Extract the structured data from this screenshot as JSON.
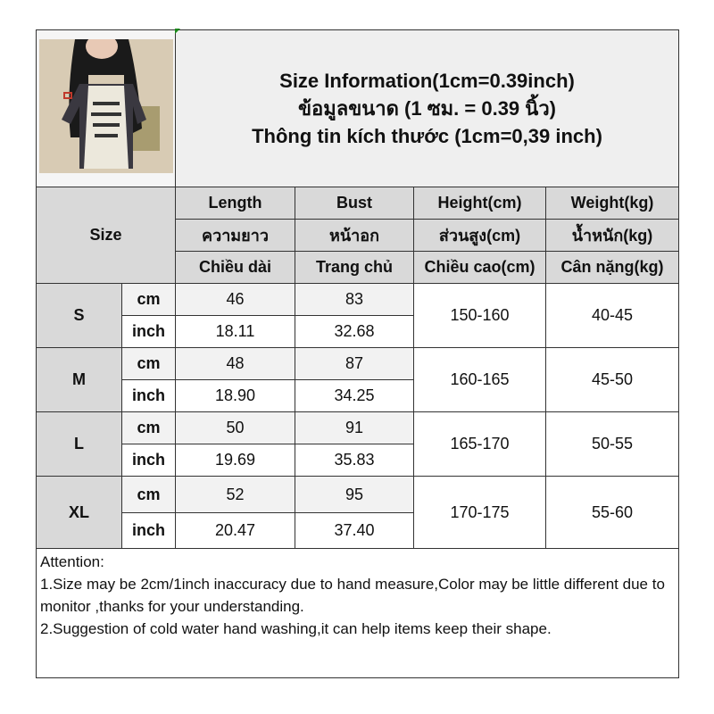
{
  "title": {
    "line1": "Size Information(1cm=0.39inch)",
    "line2": "ข้อมูลขนาด (1 ซม. = 0.39 นิ้ว)",
    "line3": "Thông tin kích thước (1cm=0,39 inch)"
  },
  "size_label": "Size",
  "columns": [
    {
      "en": "Length",
      "th": "ความยาว",
      "vi": "Chiều dài"
    },
    {
      "en": "Bust",
      "th": "หน้าอก",
      "vi": "Trang chủ"
    },
    {
      "en": "Height(cm)",
      "th": "ส่วนสูง(cm)",
      "vi": "Chiều cao(cm)"
    },
    {
      "en": "Weight(kg)",
      "th": "น้ำหนัก(kg)",
      "vi": "Cân nặng(kg)"
    }
  ],
  "units": {
    "cm": "cm",
    "inch": "inch"
  },
  "rows": [
    {
      "size": "S",
      "length_cm": "46",
      "bust_cm": "83",
      "length_in": "18.11",
      "bust_in": "32.68",
      "height": "150-160",
      "weight": "40-45"
    },
    {
      "size": "M",
      "length_cm": "48",
      "bust_cm": "87",
      "length_in": "18.90",
      "bust_in": "34.25",
      "height": "160-165",
      "weight": "45-50"
    },
    {
      "size": "L",
      "length_cm": "50",
      "bust_cm": "91",
      "length_in": "19.69",
      "bust_in": "35.83",
      "height": "165-170",
      "weight": "50-55"
    },
    {
      "size": "XL",
      "length_cm": "52",
      "bust_cm": "95",
      "length_in": "20.47",
      "bust_in": "37.40",
      "height": "170-175",
      "weight": "55-60"
    }
  ],
  "attention": {
    "heading": "Attention:",
    "line1": "1.Size may be 2cm/1inch inaccuracy due to hand measure,Color may be little different due to monitor ,thanks for your understanding.",
    "line2": "2.Suggestion of cold water hand washing,it can help items keep their shape."
  },
  "colors": {
    "header_gray": "#d9d9d9",
    "top_gray": "#efefef",
    "cm_row": "#f2f2f2"
  }
}
